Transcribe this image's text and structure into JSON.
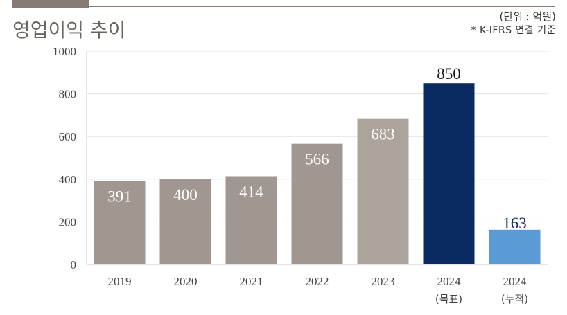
{
  "header": {
    "title": "영업이익 추이",
    "unit": "(단위 : 억원)",
    "note": "* K-IFRS 연결 기준"
  },
  "colors": {
    "gray_bar": "#a09890",
    "light_gray_bar": "#aca49b",
    "navy_bar": "#0b2a61",
    "blue_bar": "#5b9bd5",
    "accent_rule": "#857b72"
  },
  "chart_data": {
    "type": "bar",
    "title": "영업이익 추이",
    "ylabel": "",
    "xlabel": "",
    "ylim": [
      0,
      1000
    ],
    "yticks": [
      0,
      200,
      400,
      600,
      800,
      1000
    ],
    "grid": true,
    "categories": [
      {
        "line1": "2019",
        "line2": ""
      },
      {
        "line1": "2020",
        "line2": ""
      },
      {
        "line1": "2021",
        "line2": ""
      },
      {
        "line1": "2022",
        "line2": ""
      },
      {
        "line1": "2023",
        "line2": ""
      },
      {
        "line1": "2024",
        "line2": "(목표)"
      },
      {
        "line1": "2024",
        "line2": "(누적)"
      }
    ],
    "values": [
      391,
      400,
      414,
      566,
      683,
      850,
      163
    ],
    "bar_colors": [
      "#a09890",
      "#a09890",
      "#a09890",
      "#a09890",
      "#aca49b",
      "#0b2a61",
      "#5b9bd5"
    ],
    "label_styles": [
      "inside",
      "inside",
      "inside",
      "inside",
      "inside",
      "above-large",
      "above"
    ]
  }
}
